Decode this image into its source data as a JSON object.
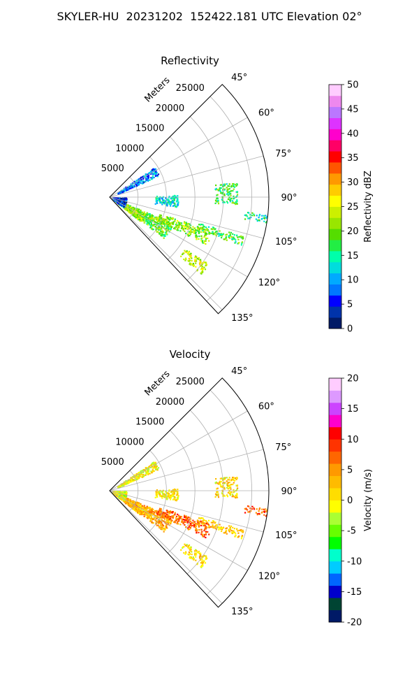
{
  "figure": {
    "suptitle": "SKYLER-HU  20231202  152422.181 UTC Elevation 02°"
  },
  "chart_data": [
    {
      "type": "heatmap",
      "subtype": "polar-sector-ppi",
      "title": "Reflectivity",
      "radial_label": "Meters",
      "radial_ticks": [
        5000,
        10000,
        15000,
        20000,
        25000
      ],
      "radial_range": [
        0,
        28000
      ],
      "azimuth_ticks": [
        45,
        60,
        75,
        90,
        105,
        120,
        135
      ],
      "azimuth_tick_labels": [
        "45°",
        "60°",
        "75°",
        "90°",
        "105°",
        "120°",
        "135°"
      ],
      "azimuth_range": [
        45,
        137
      ],
      "grid": true,
      "colorbar": {
        "label": "Reflectivity dBZ",
        "range": [
          0,
          50
        ],
        "ticks": [
          0,
          5,
          10,
          15,
          20,
          25,
          30,
          35,
          40,
          45,
          50
        ],
        "stops": [
          "#001a66",
          "#0033aa",
          "#0000ff",
          "#0077ff",
          "#00aaff",
          "#00dddd",
          "#00ffaa",
          "#22ee44",
          "#55dd00",
          "#99e600",
          "#ccf000",
          "#ffff00",
          "#ffcc00",
          "#ff9900",
          "#ff5500",
          "#ff0000",
          "#ff0066",
          "#ff00cc",
          "#dd33ff",
          "#bb77ff",
          "#ee88ee",
          "#ffccff"
        ]
      },
      "echo_regions": [
        {
          "az": [
            112,
            127
          ],
          "r": [
            1200,
            12000
          ],
          "value": 19
        },
        {
          "az": [
            108,
            116
          ],
          "r": [
            9000,
            19000
          ],
          "value": 21
        },
        {
          "az": [
            106,
            110
          ],
          "r": [
            16000,
            24500
          ],
          "value": 18
        },
        {
          "az": [
            96,
            99
          ],
          "r": [
            23500,
            28000
          ],
          "value": 15
        },
        {
          "az": [
            83,
            93
          ],
          "r": [
            18500,
            22500
          ],
          "value": 17
        },
        {
          "az": [
            115,
            128
          ],
          "r": [
            3000,
            7000
          ],
          "value": 22
        },
        {
          "az": [
            56,
            66
          ],
          "r": [
            1500,
            9500
          ],
          "value": 9
        },
        {
          "az": [
            90,
            126
          ],
          "r": [
            500,
            3000
          ],
          "value": 5
        },
        {
          "az": [
            124,
            130
          ],
          "r": [
            16000,
            21000
          ],
          "value": 24
        },
        {
          "az": [
            88,
            98
          ],
          "r": [
            8000,
            12000
          ],
          "value": 12
        }
      ]
    },
    {
      "type": "heatmap",
      "subtype": "polar-sector-ppi",
      "title": "Velocity",
      "radial_label": "Meters",
      "radial_ticks": [
        5000,
        10000,
        15000,
        20000,
        25000
      ],
      "radial_range": [
        0,
        28000
      ],
      "azimuth_ticks": [
        45,
        60,
        75,
        90,
        105,
        120,
        135
      ],
      "azimuth_tick_labels": [
        "45°",
        "60°",
        "75°",
        "90°",
        "105°",
        "120°",
        "135°"
      ],
      "azimuth_range": [
        45,
        137
      ],
      "grid": true,
      "colorbar": {
        "label": "Velocity (m/s)",
        "range": [
          -20,
          20
        ],
        "ticks": [
          -20,
          -15,
          -10,
          -5,
          0,
          5,
          10,
          15,
          20
        ],
        "stops": [
          "#001a66",
          "#004433",
          "#0000cc",
          "#0066ff",
          "#00ccff",
          "#00ffcc",
          "#00ff00",
          "#66ff00",
          "#aaff33",
          "#ffff00",
          "#ffdd00",
          "#ffbb00",
          "#ff9900",
          "#ff6600",
          "#ff3300",
          "#ff0000",
          "#ff00cc",
          "#cc44ff",
          "#dd99ff",
          "#ffccff"
        ]
      },
      "echo_regions": [
        {
          "az": [
            112,
            127
          ],
          "r": [
            1200,
            12000
          ],
          "value": 4
        },
        {
          "az": [
            108,
            116
          ],
          "r": [
            9000,
            19000
          ],
          "value": 7
        },
        {
          "az": [
            106,
            110
          ],
          "r": [
            16000,
            24500
          ],
          "value": 2
        },
        {
          "az": [
            96,
            99
          ],
          "r": [
            23500,
            28000
          ],
          "value": 8
        },
        {
          "az": [
            83,
            93
          ],
          "r": [
            18500,
            22500
          ],
          "value": 1
        },
        {
          "az": [
            115,
            128
          ],
          "r": [
            3000,
            7000
          ],
          "value": 3
        },
        {
          "az": [
            56,
            66
          ],
          "r": [
            1500,
            9500
          ],
          "value": 0
        },
        {
          "az": [
            90,
            126
          ],
          "r": [
            500,
            3000
          ],
          "value": -1
        },
        {
          "az": [
            124,
            130
          ],
          "r": [
            16000,
            21000
          ],
          "value": 1
        },
        {
          "az": [
            88,
            98
          ],
          "r": [
            8000,
            12000
          ],
          "value": 0
        }
      ]
    }
  ]
}
